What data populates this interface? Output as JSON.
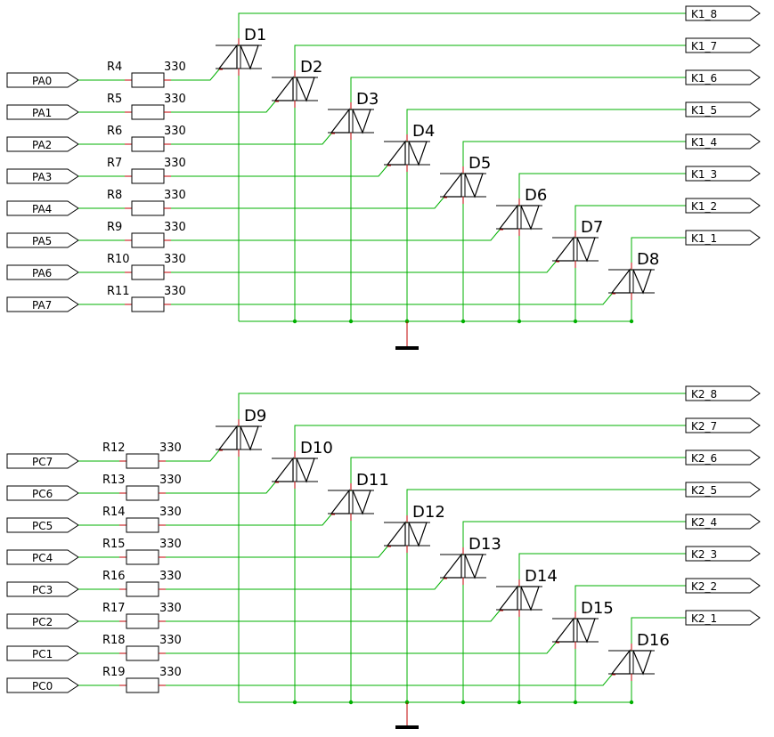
{
  "colors": {
    "background": "#ffffff",
    "wire": "#00b000",
    "pin": "#c00000",
    "component": "#000000",
    "junction": "#00b000"
  },
  "blocks": [
    {
      "inputs": [
        "PA0",
        "PA1",
        "PA2",
        "PA3",
        "PA4",
        "PA5",
        "PA6",
        "PA7"
      ],
      "resistors": [
        "R4",
        "R5",
        "R6",
        "R7",
        "R8",
        "R9",
        "R10",
        "R11"
      ],
      "resistor_value": "330",
      "triacs": [
        "D1",
        "D2",
        "D3",
        "D4",
        "D5",
        "D6",
        "D7",
        "D8"
      ],
      "outputs": [
        "K1_8",
        "K1_7",
        "K1_6",
        "K1_5",
        "K1_4",
        "K1_3",
        "K1_2",
        "K1_1"
      ]
    },
    {
      "inputs": [
        "PC7",
        "PC6",
        "PC5",
        "PC4",
        "PC3",
        "PC2",
        "PC1",
        "PC0"
      ],
      "resistors": [
        "R12",
        "R13",
        "R14",
        "R15",
        "R16",
        "R17",
        "R18",
        "R19"
      ],
      "resistor_value": "330",
      "triacs": [
        "D9",
        "D10",
        "D11",
        "D12",
        "D13",
        "D14",
        "D15",
        "D16"
      ],
      "outputs": [
        "K2_8",
        "K2_7",
        "K2_6",
        "K2_5",
        "K2_4",
        "K2_3",
        "K2_2",
        "K2_1"
      ]
    }
  ]
}
